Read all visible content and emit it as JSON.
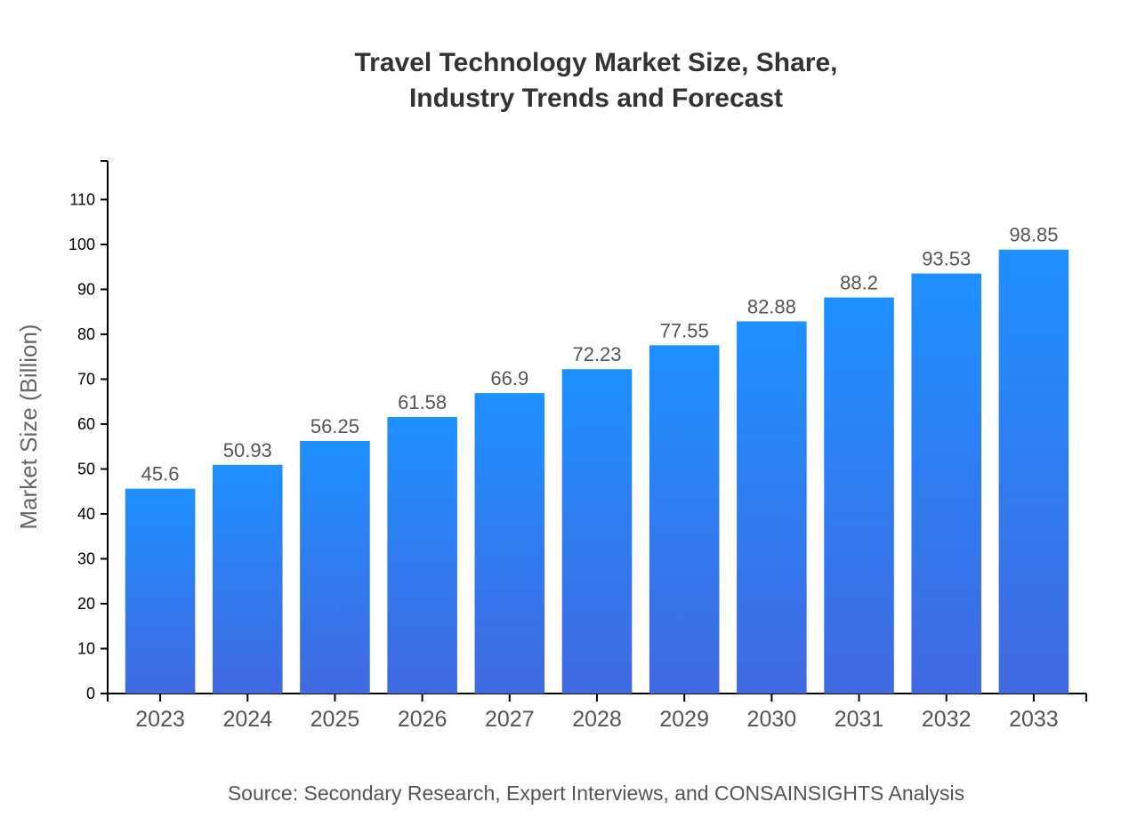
{
  "chart_data": {
    "type": "bar",
    "title": [
      "Travel Technology Market Size, Share,",
      "Industry Trends and Forecast"
    ],
    "xlabel": "",
    "ylabel": "Market Size (Billion)",
    "categories": [
      "2023",
      "2024",
      "2025",
      "2026",
      "2027",
      "2028",
      "2029",
      "2030",
      "2031",
      "2032",
      "2033"
    ],
    "values": [
      45.6,
      50.93,
      56.25,
      61.58,
      66.9,
      72.23,
      77.55,
      82.88,
      88.2,
      93.53,
      98.85
    ],
    "ylim": [
      0,
      118.6
    ],
    "yticks": [
      0,
      10,
      20,
      30,
      40,
      50,
      60,
      70,
      80,
      90,
      100,
      110
    ],
    "grid": false,
    "legend": "none",
    "colors": {
      "bar_top": "#1E90FF",
      "bar_bottom": "#4169E1"
    },
    "source": "Source: Secondary Research, Expert Interviews, and CONSAINSIGHTS Analysis"
  }
}
